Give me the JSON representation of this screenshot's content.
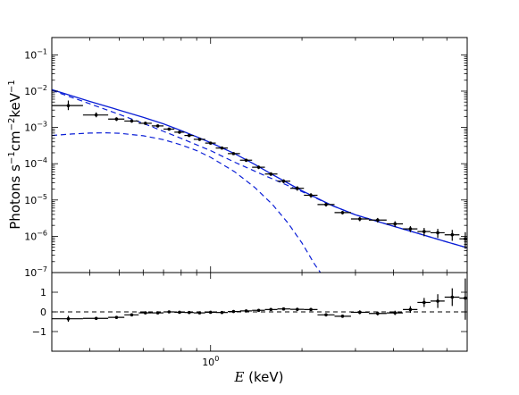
{
  "figure": {
    "top_panel": {
      "ylabel_html": "Photons s<tspan dy='-6' font-size='10'>−1</tspan><tspan dy='6'>cm</tspan><tspan dy='-6' font-size='10'>−2</tspan><tspan dy='6'>keV</tspan><tspan dy='-6' font-size='10'>−1</tspan>",
      "ytick_labels": [
        {
          "base": "10",
          "exp": "−7"
        },
        {
          "base": "10",
          "exp": "−6"
        },
        {
          "base": "10",
          "exp": "−5"
        },
        {
          "base": "10",
          "exp": "−4"
        },
        {
          "base": "10",
          "exp": "−3"
        },
        {
          "base": "10",
          "exp": "−2"
        },
        {
          "base": "10",
          "exp": "−1"
        }
      ]
    },
    "bottom_panel": {
      "ytick_labels": [
        "−1",
        "0",
        "1"
      ]
    },
    "xlabel_var": "E",
    "xlabel_unit": " (keV)",
    "xtick_label": {
      "base": "10",
      "exp": "0"
    }
  },
  "chart_data": [
    {
      "type": "scatter",
      "panel": "spectrum",
      "xscale": "log",
      "yscale": "log",
      "xlim": [
        0.3,
        7.0
      ],
      "ylim": [
        1e-07,
        0.3
      ],
      "xlabel": "E (keV)",
      "ylabel": "Photons s^-1 cm^-2 keV^-1",
      "series": [
        {
          "kind": "data",
          "points": [
            {
              "x": 0.34,
              "xlo": 0.3,
              "xhi": 0.38,
              "y": 0.004,
              "ylo": 0.003,
              "yhi": 0.0055
            },
            {
              "x": 0.42,
              "xlo": 0.38,
              "xhi": 0.46,
              "y": 0.0022,
              "ylo": 0.0019,
              "yhi": 0.0026
            },
            {
              "x": 0.49,
              "xlo": 0.46,
              "xhi": 0.52,
              "y": 0.0017,
              "ylo": 0.0015,
              "yhi": 0.0019
            },
            {
              "x": 0.55,
              "xlo": 0.52,
              "xhi": 0.58,
              "y": 0.0015,
              "ylo": 0.00135,
              "yhi": 0.00165
            },
            {
              "x": 0.61,
              "xlo": 0.58,
              "xhi": 0.64,
              "y": 0.0013,
              "ylo": 0.0012,
              "yhi": 0.0014
            },
            {
              "x": 0.67,
              "xlo": 0.64,
              "xhi": 0.7,
              "y": 0.0011,
              "ylo": 0.001,
              "yhi": 0.0012
            },
            {
              "x": 0.73,
              "xlo": 0.7,
              "xhi": 0.76,
              "y": 0.0009,
              "ylo": 0.00082,
              "yhi": 0.00098
            },
            {
              "x": 0.79,
              "xlo": 0.76,
              "xhi": 0.82,
              "y": 0.00074,
              "ylo": 0.00068,
              "yhi": 0.0008
            },
            {
              "x": 0.85,
              "xlo": 0.82,
              "xhi": 0.88,
              "y": 0.0006,
              "ylo": 0.00055,
              "yhi": 0.00065
            },
            {
              "x": 0.92,
              "xlo": 0.88,
              "xhi": 0.96,
              "y": 0.00047,
              "ylo": 0.00043,
              "yhi": 0.00051
            },
            {
              "x": 1.0,
              "xlo": 0.96,
              "xhi": 1.04,
              "y": 0.00037,
              "ylo": 0.00034,
              "yhi": 0.0004
            },
            {
              "x": 1.09,
              "xlo": 1.04,
              "xhi": 1.14,
              "y": 0.00027,
              "ylo": 0.00025,
              "yhi": 0.00029
            },
            {
              "x": 1.19,
              "xlo": 1.14,
              "xhi": 1.25,
              "y": 0.00019,
              "ylo": 0.000175,
              "yhi": 0.000205
            },
            {
              "x": 1.31,
              "xlo": 1.25,
              "xhi": 1.37,
              "y": 0.000125,
              "ylo": 0.000112,
              "yhi": 0.000138
            },
            {
              "x": 1.44,
              "xlo": 1.37,
              "xhi": 1.51,
              "y": 8e-05,
              "ylo": 7.1e-05,
              "yhi": 8.9e-05
            },
            {
              "x": 1.58,
              "xlo": 1.51,
              "xhi": 1.66,
              "y": 5.2e-05,
              "ylo": 4.6e-05,
              "yhi": 5.8e-05
            },
            {
              "x": 1.74,
              "xlo": 1.66,
              "xhi": 1.83,
              "y": 3.3e-05,
              "ylo": 2.9e-05,
              "yhi": 3.7e-05
            },
            {
              "x": 1.93,
              "xlo": 1.83,
              "xhi": 2.03,
              "y": 2.1e-05,
              "ylo": 1.8e-05,
              "yhi": 2.4e-05
            },
            {
              "x": 2.14,
              "xlo": 2.03,
              "xhi": 2.25,
              "y": 1.35e-05,
              "ylo": 1.15e-05,
              "yhi": 1.55e-05
            },
            {
              "x": 2.4,
              "xlo": 2.25,
              "xhi": 2.56,
              "y": 7.5e-06,
              "ylo": 6.6e-06,
              "yhi": 8.4e-06
            },
            {
              "x": 2.72,
              "xlo": 2.56,
              "xhi": 2.9,
              "y": 4.5e-06,
              "ylo": 4e-06,
              "yhi": 5e-06
            },
            {
              "x": 3.1,
              "xlo": 2.9,
              "xhi": 3.32,
              "y": 3e-06,
              "ylo": 2.6e-06,
              "yhi": 3.4e-06
            },
            {
              "x": 3.55,
              "xlo": 3.32,
              "xhi": 3.8,
              "y": 2.8e-06,
              "ylo": 2.4e-06,
              "yhi": 3.2e-06
            },
            {
              "x": 4.05,
              "xlo": 3.8,
              "xhi": 4.3,
              "y": 2.2e-06,
              "ylo": 1.8e-06,
              "yhi": 2.6e-06
            },
            {
              "x": 4.55,
              "xlo": 4.3,
              "xhi": 4.8,
              "y": 1.6e-06,
              "ylo": 1.3e-06,
              "yhi": 1.9e-06
            },
            {
              "x": 5.05,
              "xlo": 4.8,
              "xhi": 5.3,
              "y": 1.35e-06,
              "ylo": 1e-06,
              "yhi": 1.7e-06
            },
            {
              "x": 5.6,
              "xlo": 5.3,
              "xhi": 5.9,
              "y": 1.25e-06,
              "ylo": 9e-07,
              "yhi": 1.6e-06
            },
            {
              "x": 6.25,
              "xlo": 5.9,
              "xhi": 6.6,
              "y": 1.1e-06,
              "ylo": 7.5e-07,
              "yhi": 1.5e-06
            },
            {
              "x": 6.9,
              "xlo": 6.6,
              "xhi": 7.0,
              "y": 8.5e-07,
              "ylo": 4.5e-07,
              "yhi": 1.3e-06
            }
          ]
        },
        {
          "kind": "model-total",
          "line": "solid",
          "color": "#0a1ed6",
          "points": [
            [
              0.3,
              0.011
            ],
            [
              0.4,
              0.0052
            ],
            [
              0.5,
              0.003
            ],
            [
              0.6,
              0.0019
            ],
            [
              0.7,
              0.00125
            ],
            [
              0.8,
              0.00082
            ],
            [
              0.9,
              0.00055
            ],
            [
              1.0,
              0.00038
            ],
            [
              1.2,
              0.00019
            ],
            [
              1.4,
              9.5e-05
            ],
            [
              1.6,
              5e-05
            ],
            [
              1.8,
              2.9e-05
            ],
            [
              2.0,
              1.8e-05
            ],
            [
              2.5,
              7.2e-06
            ],
            [
              3.0,
              3.9e-06
            ],
            [
              4.0,
              1.9e-06
            ],
            [
              5.0,
              1.1e-06
            ],
            [
              6.0,
              7e-07
            ],
            [
              7.0,
              4.8e-07
            ]
          ]
        },
        {
          "kind": "model-component-powerlaw",
          "line": "dashed",
          "color": "#0a1ed6",
          "points": [
            [
              0.3,
              0.0105
            ],
            [
              0.4,
              0.0045
            ],
            [
              0.5,
              0.0023
            ],
            [
              0.6,
              0.0013
            ],
            [
              0.7,
              0.00078
            ],
            [
              0.8,
              0.0005
            ],
            [
              0.9,
              0.00033
            ],
            [
              1.0,
              0.00023
            ],
            [
              1.2,
              0.00011
            ],
            [
              1.5,
              4.8e-05
            ],
            [
              2.0,
              1.7e-05
            ],
            [
              2.5,
              7.1e-06
            ],
            [
              3.0,
              3.9e-06
            ],
            [
              4.0,
              1.9e-06
            ],
            [
              5.0,
              1.1e-06
            ],
            [
              6.0,
              7e-07
            ],
            [
              7.0,
              4.8e-07
            ]
          ]
        },
        {
          "kind": "model-component-thermal",
          "line": "dashed",
          "color": "#0a1ed6",
          "points": [
            [
              0.3,
              0.0006
            ],
            [
              0.35,
              0.00066
            ],
            [
              0.4,
              0.0007
            ],
            [
              0.45,
              0.00071
            ],
            [
              0.5,
              0.00069
            ],
            [
              0.6,
              0.00059
            ],
            [
              0.7,
              0.00046
            ],
            [
              0.8,
              0.00033
            ],
            [
              0.9,
              0.00023
            ],
            [
              1.0,
              0.00015
            ],
            [
              1.2,
              6e-05
            ],
            [
              1.4,
              2.2e-05
            ],
            [
              1.6,
              7.5e-06
            ],
            [
              1.8,
              2.3e-06
            ],
            [
              2.0,
              6.5e-07
            ],
            [
              2.2,
              1.7e-07
            ],
            [
              2.3,
              1e-07
            ]
          ]
        }
      ]
    },
    {
      "type": "scatter",
      "panel": "residuals",
      "xscale": "log",
      "xlim": [
        0.3,
        7.0
      ],
      "ylim": [
        -2.0,
        2.0
      ],
      "reference_line": 0,
      "series": [
        {
          "kind": "residuals",
          "points": [
            {
              "x": 0.34,
              "xlo": 0.3,
              "xhi": 0.38,
              "y": -0.35,
              "ylo": -0.5,
              "yhi": -0.2
            },
            {
              "x": 0.42,
              "xlo": 0.38,
              "xhi": 0.46,
              "y": -0.33,
              "ylo": -0.4,
              "yhi": -0.26
            },
            {
              "x": 0.49,
              "xlo": 0.46,
              "xhi": 0.52,
              "y": -0.28,
              "ylo": -0.34,
              "yhi": -0.22
            },
            {
              "x": 0.55,
              "xlo": 0.52,
              "xhi": 0.58,
              "y": -0.15,
              "ylo": -0.2,
              "yhi": -0.1
            },
            {
              "x": 0.61,
              "xlo": 0.58,
              "xhi": 0.64,
              "y": -0.05,
              "ylo": -0.1,
              "yhi": 0.0
            },
            {
              "x": 0.67,
              "xlo": 0.64,
              "xhi": 0.7,
              "y": -0.05,
              "ylo": -0.1,
              "yhi": 0.0
            },
            {
              "x": 0.73,
              "xlo": 0.7,
              "xhi": 0.76,
              "y": 0.0,
              "ylo": -0.05,
              "yhi": 0.05
            },
            {
              "x": 0.79,
              "xlo": 0.76,
              "xhi": 0.82,
              "y": -0.02,
              "ylo": -0.07,
              "yhi": 0.03
            },
            {
              "x": 0.85,
              "xlo": 0.82,
              "xhi": 0.88,
              "y": -0.03,
              "ylo": -0.08,
              "yhi": 0.02
            },
            {
              "x": 0.92,
              "xlo": 0.88,
              "xhi": 0.96,
              "y": -0.05,
              "ylo": -0.1,
              "yhi": 0.0
            },
            {
              "x": 1.0,
              "xlo": 0.96,
              "xhi": 1.04,
              "y": -0.02,
              "ylo": -0.07,
              "yhi": 0.03
            },
            {
              "x": 1.09,
              "xlo": 1.04,
              "xhi": 1.14,
              "y": -0.03,
              "ylo": -0.08,
              "yhi": 0.02
            },
            {
              "x": 1.19,
              "xlo": 1.14,
              "xhi": 1.25,
              "y": 0.02,
              "ylo": -0.03,
              "yhi": 0.07
            },
            {
              "x": 1.31,
              "xlo": 1.25,
              "xhi": 1.37,
              "y": 0.05,
              "ylo": 0.0,
              "yhi": 0.1
            },
            {
              "x": 1.44,
              "xlo": 1.37,
              "xhi": 1.51,
              "y": 0.08,
              "ylo": 0.02,
              "yhi": 0.14
            },
            {
              "x": 1.58,
              "xlo": 1.51,
              "xhi": 1.66,
              "y": 0.12,
              "ylo": 0.05,
              "yhi": 0.19
            },
            {
              "x": 1.74,
              "xlo": 1.66,
              "xhi": 1.83,
              "y": 0.15,
              "ylo": 0.08,
              "yhi": 0.22
            },
            {
              "x": 1.93,
              "xlo": 1.83,
              "xhi": 2.03,
              "y": 0.13,
              "ylo": 0.05,
              "yhi": 0.21
            },
            {
              "x": 2.14,
              "xlo": 2.03,
              "xhi": 2.25,
              "y": 0.12,
              "ylo": 0.04,
              "yhi": 0.2
            },
            {
              "x": 2.4,
              "xlo": 2.25,
              "xhi": 2.56,
              "y": -0.15,
              "ylo": -0.23,
              "yhi": -0.07
            },
            {
              "x": 2.72,
              "xlo": 2.56,
              "xhi": 2.9,
              "y": -0.22,
              "ylo": -0.3,
              "yhi": -0.14
            },
            {
              "x": 3.1,
              "xlo": 2.9,
              "xhi": 3.32,
              "y": -0.02,
              "ylo": -0.12,
              "yhi": 0.08
            },
            {
              "x": 3.55,
              "xlo": 3.32,
              "xhi": 3.8,
              "y": -0.08,
              "ylo": -0.18,
              "yhi": 0.02
            },
            {
              "x": 4.05,
              "xlo": 3.8,
              "xhi": 4.3,
              "y": -0.05,
              "ylo": -0.16,
              "yhi": 0.06
            },
            {
              "x": 4.55,
              "xlo": 4.3,
              "xhi": 4.8,
              "y": 0.12,
              "ylo": -0.05,
              "yhi": 0.29
            },
            {
              "x": 5.05,
              "xlo": 4.8,
              "xhi": 5.3,
              "y": 0.48,
              "ylo": 0.25,
              "yhi": 0.71
            },
            {
              "x": 5.6,
              "xlo": 5.3,
              "xhi": 5.9,
              "y": 0.55,
              "ylo": 0.2,
              "yhi": 0.9
            },
            {
              "x": 6.25,
              "xlo": 5.9,
              "xhi": 6.6,
              "y": 0.75,
              "ylo": 0.3,
              "yhi": 1.2
            },
            {
              "x": 6.9,
              "xlo": 6.6,
              "xhi": 7.0,
              "y": 0.7,
              "ylo": -0.4,
              "yhi": 1.7
            }
          ]
        }
      ]
    }
  ]
}
